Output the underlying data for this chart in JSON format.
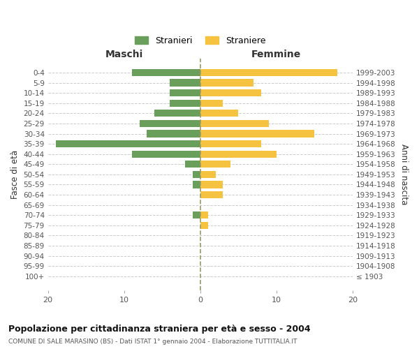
{
  "age_groups": [
    "100+",
    "95-99",
    "90-94",
    "85-89",
    "80-84",
    "75-79",
    "70-74",
    "65-69",
    "60-64",
    "55-59",
    "50-54",
    "45-49",
    "40-44",
    "35-39",
    "30-34",
    "25-29",
    "20-24",
    "15-19",
    "10-14",
    "5-9",
    "0-4"
  ],
  "birth_years": [
    "≤ 1903",
    "1904-1908",
    "1909-1913",
    "1914-1918",
    "1919-1923",
    "1924-1928",
    "1929-1933",
    "1934-1938",
    "1939-1943",
    "1944-1948",
    "1949-1953",
    "1954-1958",
    "1959-1963",
    "1964-1968",
    "1969-1973",
    "1974-1978",
    "1979-1983",
    "1984-1988",
    "1989-1993",
    "1994-1998",
    "1999-2003"
  ],
  "males": [
    0,
    0,
    0,
    0,
    0,
    0,
    1,
    0,
    0,
    1,
    1,
    2,
    9,
    19,
    7,
    8,
    6,
    4,
    4,
    4,
    9
  ],
  "females": [
    0,
    0,
    0,
    0,
    0,
    1,
    1,
    0,
    3,
    3,
    2,
    4,
    10,
    8,
    15,
    9,
    5,
    3,
    8,
    7,
    18
  ],
  "male_color": "#6a9f5b",
  "female_color": "#f5c340",
  "title": "Popolazione per cittadinanza straniera per età e sesso - 2004",
  "subtitle": "COMUNE DI SALE MARASINO (BS) - Dati ISTAT 1° gennaio 2004 - Elaborazione TUTTITALIA.IT",
  "xlabel_left": "Maschi",
  "xlabel_right": "Femmine",
  "ylabel_left": "Fasce di età",
  "ylabel_right": "Anni di nascita",
  "xlim": 20,
  "legend_male": "Stranieri",
  "legend_female": "Straniere",
  "background_color": "#ffffff",
  "grid_color": "#cccccc"
}
